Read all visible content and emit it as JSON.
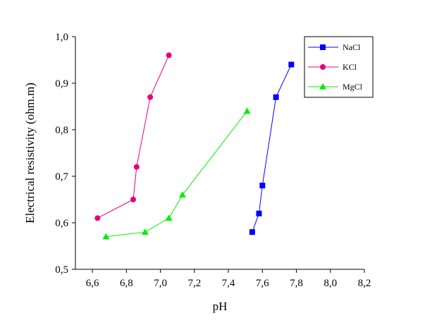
{
  "chart_data": {
    "type": "line",
    "xlabel": "pH",
    "ylabel": "Electrical resistivity (ohm.m)",
    "xlim": [
      6.5,
      8.2
    ],
    "ylim": [
      0.5,
      1.0
    ],
    "x_ticks": [
      6.6,
      6.8,
      7.0,
      7.2,
      7.4,
      7.6,
      7.8,
      8.0,
      8.2
    ],
    "x_tick_labels": [
      "6,6",
      "6,8",
      "7,0",
      "7,2",
      "7,4",
      "7,6",
      "7,8",
      "8,0",
      "8,2"
    ],
    "y_ticks": [
      0.5,
      0.6,
      0.7,
      0.8,
      0.9,
      1.0
    ],
    "y_tick_labels": [
      "0,5",
      "0,6",
      "0,7",
      "0,8",
      "0,9",
      "1,0"
    ],
    "grid": false,
    "legend_position": "top-right",
    "series": [
      {
        "name": "NaCl",
        "color": "#0000ff",
        "marker": "square",
        "x": [
          7.54,
          7.58,
          7.6,
          7.68,
          7.77
        ],
        "y": [
          0.58,
          0.62,
          0.68,
          0.87,
          0.94
        ]
      },
      {
        "name": "KCl",
        "color": "#e6007e",
        "marker": "circle",
        "x": [
          6.63,
          6.84,
          6.86,
          6.94,
          7.05
        ],
        "y": [
          0.61,
          0.65,
          0.72,
          0.87,
          0.96
        ]
      },
      {
        "name": "MgCl",
        "color": "#00ee00",
        "marker": "triangle",
        "x": [
          6.68,
          6.91,
          7.05,
          7.13,
          7.51
        ],
        "y": [
          0.57,
          0.58,
          0.61,
          0.66,
          0.84
        ]
      }
    ]
  }
}
